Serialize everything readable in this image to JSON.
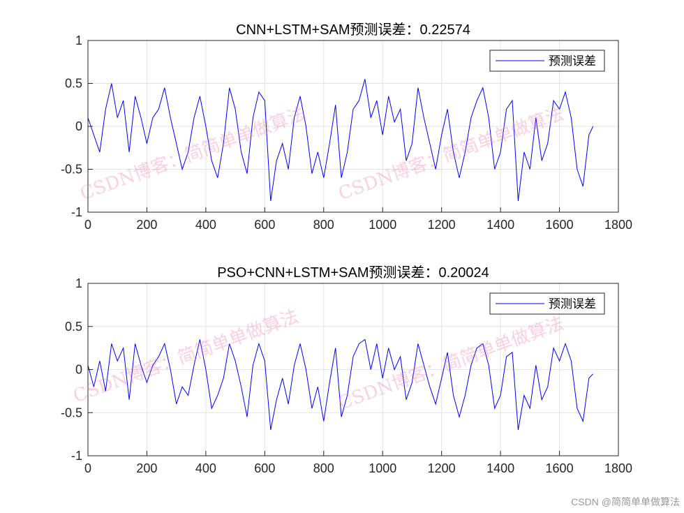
{
  "chart_data": [
    {
      "type": "line",
      "title": "CNN+LSTM+SAM预测误差：0.22574",
      "xlim": [
        0,
        1800
      ],
      "ylim": [
        -1,
        1
      ],
      "xticks": [
        0,
        200,
        400,
        600,
        800,
        1000,
        1200,
        1400,
        1600,
        1800
      ],
      "yticks": [
        -1,
        -0.5,
        0,
        0.5,
        1
      ],
      "grid": true,
      "legend_placement": "top-right",
      "series": [
        {
          "name": "预测误差",
          "color": "#0000ff",
          "x": [
            0,
            20,
            40,
            60,
            80,
            100,
            120,
            140,
            160,
            180,
            200,
            220,
            240,
            260,
            280,
            300,
            320,
            340,
            360,
            380,
            400,
            420,
            440,
            460,
            480,
            500,
            520,
            540,
            560,
            580,
            600,
            620,
            640,
            660,
            680,
            700,
            720,
            740,
            760,
            780,
            800,
            820,
            840,
            860,
            880,
            900,
            920,
            940,
            960,
            980,
            1000,
            1020,
            1040,
            1060,
            1080,
            1100,
            1120,
            1140,
            1160,
            1180,
            1200,
            1220,
            1240,
            1260,
            1280,
            1300,
            1320,
            1340,
            1360,
            1380,
            1400,
            1420,
            1440,
            1460,
            1480,
            1500,
            1520,
            1540,
            1560,
            1580,
            1600,
            1620,
            1640,
            1660,
            1680,
            1700,
            1714
          ],
          "y": [
            0.1,
            -0.1,
            -0.3,
            0.2,
            0.5,
            0.1,
            0.3,
            -0.3,
            0.35,
            0.1,
            -0.2,
            0.1,
            0.2,
            0.45,
            0.1,
            -0.2,
            -0.5,
            -0.3,
            0.1,
            0.35,
            0.0,
            -0.4,
            -0.6,
            -0.2,
            0.45,
            0.2,
            -0.3,
            -0.55,
            0.1,
            0.4,
            0.3,
            -0.87,
            -0.4,
            -0.2,
            -0.5,
            0.1,
            0.35,
            0.0,
            -0.55,
            -0.3,
            -0.6,
            -0.2,
            0.25,
            -0.6,
            -0.3,
            0.2,
            0.3,
            0.55,
            0.1,
            0.3,
            -0.1,
            0.35,
            0.05,
            0.2,
            -0.4,
            -0.2,
            0.45,
            0.1,
            -0.2,
            -0.5,
            -0.1,
            0.2,
            -0.3,
            -0.6,
            -0.3,
            0.1,
            0.3,
            0.45,
            0.1,
            -0.5,
            -0.3,
            0.2,
            0.3,
            -0.87,
            -0.3,
            -0.5,
            0.1,
            -0.4,
            -0.2,
            0.3,
            0.2,
            0.4,
            0.1,
            -0.5,
            -0.7,
            -0.1,
            0.0
          ]
        }
      ]
    },
    {
      "type": "line",
      "title": "PSO+CNN+LSTM+SAM预测误差：0.20024",
      "xlim": [
        0,
        1800
      ],
      "ylim": [
        -1,
        1
      ],
      "xticks": [
        0,
        200,
        400,
        600,
        800,
        1000,
        1200,
        1400,
        1600,
        1800
      ],
      "yticks": [
        -1,
        -0.5,
        0,
        0.5,
        1
      ],
      "grid": true,
      "legend_placement": "top-right",
      "series": [
        {
          "name": "预测误差",
          "color": "#0000ff",
          "x": [
            0,
            20,
            40,
            60,
            80,
            100,
            120,
            140,
            160,
            180,
            200,
            220,
            240,
            260,
            280,
            300,
            320,
            340,
            360,
            380,
            400,
            420,
            440,
            460,
            480,
            500,
            520,
            540,
            560,
            580,
            600,
            620,
            640,
            660,
            680,
            700,
            720,
            740,
            760,
            780,
            800,
            820,
            840,
            860,
            880,
            900,
            920,
            940,
            960,
            980,
            1000,
            1020,
            1040,
            1060,
            1080,
            1100,
            1120,
            1140,
            1160,
            1180,
            1200,
            1220,
            1240,
            1260,
            1280,
            1300,
            1320,
            1340,
            1360,
            1380,
            1400,
            1420,
            1440,
            1460,
            1480,
            1500,
            1520,
            1540,
            1560,
            1580,
            1600,
            1620,
            1640,
            1660,
            1680,
            1700,
            1714
          ],
          "y": [
            0.05,
            -0.2,
            0.1,
            -0.25,
            0.3,
            0.1,
            0.25,
            -0.35,
            0.3,
            0.05,
            -0.15,
            0.05,
            0.15,
            0.3,
            0.0,
            -0.4,
            -0.2,
            -0.3,
            0.05,
            0.35,
            0.0,
            -0.45,
            -0.3,
            -0.1,
            0.3,
            0.1,
            -0.2,
            -0.55,
            0.05,
            0.3,
            0.1,
            -0.7,
            -0.35,
            -0.1,
            -0.4,
            0.05,
            0.3,
            0.0,
            -0.45,
            -0.2,
            -0.6,
            -0.15,
            0.25,
            -0.55,
            -0.3,
            0.15,
            0.3,
            0.35,
            0.0,
            0.3,
            -0.1,
            0.25,
            0.0,
            0.15,
            -0.35,
            -0.15,
            0.3,
            0.05,
            -0.2,
            -0.4,
            -0.1,
            0.2,
            -0.3,
            -0.55,
            -0.3,
            0.05,
            0.25,
            0.3,
            0.05,
            -0.45,
            -0.3,
            0.15,
            0.2,
            -0.7,
            -0.3,
            -0.45,
            0.05,
            -0.35,
            -0.2,
            0.25,
            0.1,
            0.3,
            0.1,
            -0.45,
            -0.6,
            -0.1,
            -0.05
          ]
        }
      ]
    }
  ],
  "watermark": "CSDN博客：简简单单做算法",
  "footer": "CSDN @简简单单做算法"
}
